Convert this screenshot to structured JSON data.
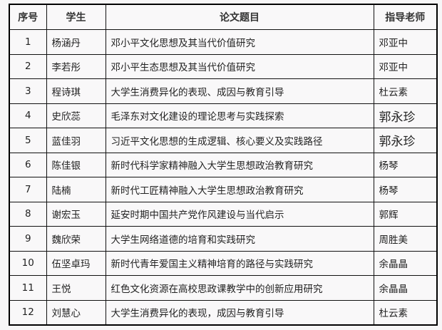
{
  "headers": [
    "序号",
    "学生",
    "论文题目",
    "指导老师"
  ],
  "rows": [
    {
      "no": "1",
      "student": "杨涵丹",
      "title": "邓小平文化思想及其当代价值研究",
      "advisor": "邓亚中"
    },
    {
      "no": "2",
      "student": "李若彤",
      "title": "邓小平生态思想及其当代价值研究",
      "advisor": "邓亚中"
    },
    {
      "no": "3",
      "student": "程诗琪",
      "title": "大学生消费异化的表现、成因与教育引导",
      "advisor": "杜云素"
    },
    {
      "no": "4",
      "student": "史欣蕊",
      "title": "毛泽东对文化建设的理论思考与实践探索",
      "advisor": "郭永珍"
    },
    {
      "no": "5",
      "student": "蓝佳羽",
      "title": "习近平文化思想的生成逻辑、核心要义及实践路径",
      "advisor": "郭永珍"
    },
    {
      "no": "6",
      "student": "陈佳银",
      "title": "新时代科学家精神融入大学生思想政治教育研究",
      "advisor": "杨琴"
    },
    {
      "no": "7",
      "student": "陆楠",
      "title": "新时代工匠精神融入大学生思想政治教育研究",
      "advisor": "杨琴"
    },
    {
      "no": "8",
      "student": "谢宏玉",
      "title": "延安时期中国共产党作风建设与当代启示",
      "advisor": "郭辉"
    },
    {
      "no": "9",
      "student": "魏欣荣",
      "title": "大学生网络道德的培育和实践研究",
      "advisor": "周胜美"
    },
    {
      "no": "10",
      "student": "伍坚卓玛",
      "title": "新时代青年爱国主义精神培育的路径与实践研究",
      "advisor": "余晶晶"
    },
    {
      "no": "11",
      "student": "王悦",
      "title": "红色文化资源在高校思政课教学中的创新应用研究",
      "advisor": "余晶晶"
    },
    {
      "no": "12",
      "student": "刘慧心",
      "title": "大学生消费异化的表现，成因与教育引导",
      "advisor": "杜云素"
    }
  ]
}
